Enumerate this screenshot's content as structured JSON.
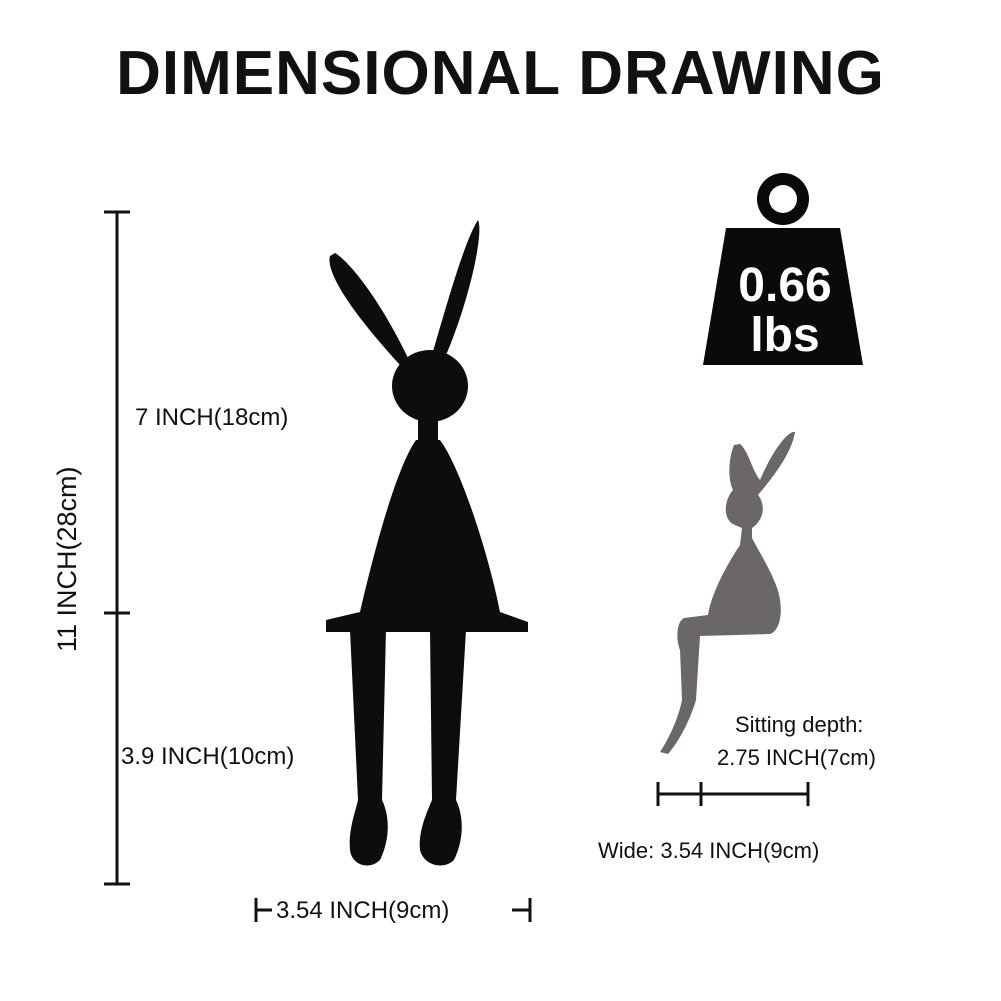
{
  "title": "DIMENSIONAL DRAWING",
  "dimensions": {
    "total_height": "11 INCH(28cm)",
    "upper_height": "7 INCH(18cm)",
    "lower_height": "3.9 INCH(10cm)",
    "front_width": "3.54 INCH(9cm)"
  },
  "weight": {
    "value": "0.66",
    "unit": "lbs"
  },
  "side_view": {
    "depth_label": "Sitting depth:",
    "depth_value": "2.75 INCH(7cm)",
    "wide_label": "Wide:  3.54 INCH(9cm)"
  },
  "colors": {
    "figure": "#0d0d0d",
    "silhouette": "#6b6769",
    "weight_icon": "#0a0a0a"
  }
}
